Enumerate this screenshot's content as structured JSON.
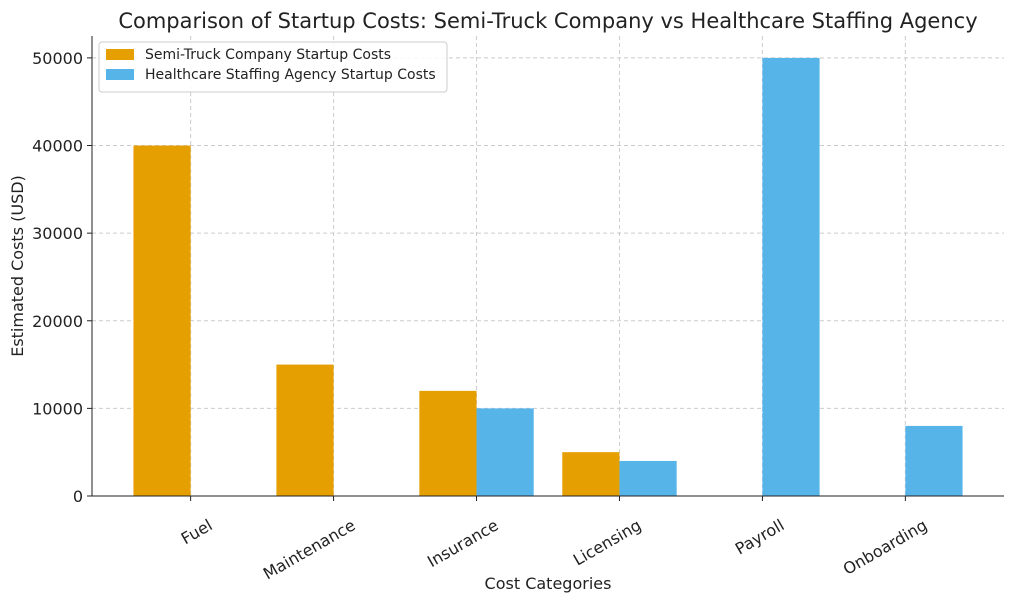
{
  "chart_data": {
    "type": "bar",
    "title": "Comparison of Startup Costs: Semi-Truck Company vs Healthcare Staffing Agency",
    "xlabel": "Cost Categories",
    "ylabel": "Estimated Costs (USD)",
    "categories": [
      "Fuel",
      "Maintenance",
      "Insurance",
      "Licensing",
      "Payroll",
      "Onboarding"
    ],
    "series": [
      {
        "name": "Semi-Truck Company Startup Costs",
        "color": "#E69F00",
        "values": [
          40000,
          15000,
          12000,
          5000,
          0,
          0
        ]
      },
      {
        "name": "Healthcare Staffing Agency Startup Costs",
        "color": "#56B4E9",
        "values": [
          0,
          0,
          10000,
          4000,
          50000,
          8000
        ]
      }
    ],
    "ylim": [
      0,
      52500
    ],
    "yticks": [
      "0",
      "10000",
      "20000",
      "30000",
      "40000",
      "50000"
    ],
    "grid": true,
    "legend_position": "top-left"
  }
}
